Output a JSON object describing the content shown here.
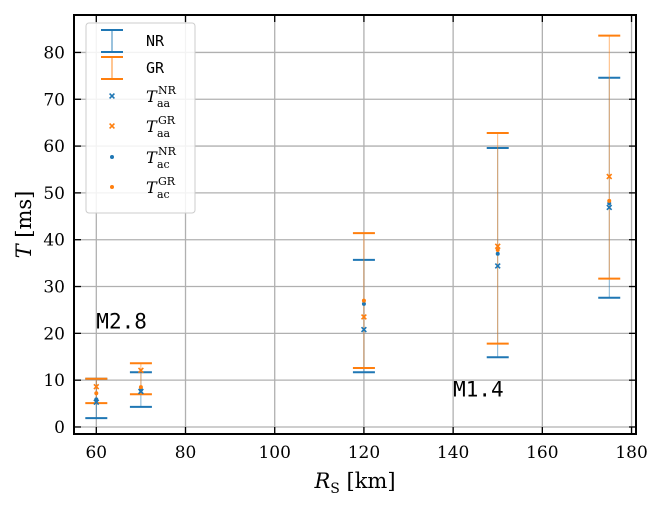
{
  "chart_data": {
    "type": "errorbar-scatter",
    "xlabel": "R",
    "xlabel_sub": "S",
    "xlabel_unit": "[km]",
    "ylabel": "T",
    "ylabel_unit": "[ms]",
    "xlim": [
      55,
      181
    ],
    "ylim": [
      -1.5,
      88
    ],
    "xticks": [
      60,
      80,
      100,
      120,
      140,
      160,
      180
    ],
    "yticks": [
      0,
      10,
      20,
      30,
      40,
      50,
      60,
      70,
      80
    ],
    "grid": true,
    "colors": {
      "NR": "#1f77b4",
      "GR": "#ff7f0e"
    },
    "ranges": [
      {
        "name": "NR",
        "x": [
          60,
          70,
          120,
          150,
          175
        ],
        "low": [
          1.9,
          4.3,
          11.7,
          14.9,
          27.6
        ],
        "high": [
          10.3,
          11.7,
          35.7,
          59.6,
          74.6
        ]
      },
      {
        "name": "GR",
        "x": [
          60,
          70,
          120,
          150,
          175
        ],
        "low": [
          5.1,
          7.0,
          12.6,
          17.8,
          31.7
        ],
        "high": [
          10.3,
          13.6,
          41.4,
          62.8,
          83.6
        ]
      }
    ],
    "points": [
      {
        "name": "T_aa^NR",
        "marker": "x",
        "color": "NR",
        "x": [
          60,
          70,
          120,
          150,
          175
        ],
        "y": [
          5.3,
          7.6,
          20.8,
          34.4,
          46.9
        ]
      },
      {
        "name": "T_aa^GR",
        "marker": "x",
        "color": "GR",
        "x": [
          60,
          70,
          120,
          150,
          175
        ],
        "y": [
          8.6,
          12.1,
          23.5,
          38.6,
          53.5
        ]
      },
      {
        "name": "T_ac^NR",
        "marker": "dot",
        "color": "NR",
        "x": [
          60,
          70,
          120,
          150,
          175
        ],
        "y": [
          5.9,
          7.9,
          26.3,
          37.0,
          47.8
        ]
      },
      {
        "name": "T_ac^GR",
        "marker": "dot",
        "color": "GR",
        "x": [
          60,
          70,
          120,
          150,
          175
        ],
        "y": [
          7.2,
          8.5,
          27.0,
          37.8,
          48.3
        ]
      }
    ],
    "legend": {
      "location": "upper-left",
      "entries": [
        {
          "label": "NR",
          "kind": "errorbar",
          "color": "NR"
        },
        {
          "label": "GR",
          "kind": "errorbar",
          "color": "GR"
        },
        {
          "label_base": "T",
          "label_sub": "aa",
          "label_sup": "NR",
          "kind": "x",
          "color": "NR"
        },
        {
          "label_base": "T",
          "label_sub": "aa",
          "label_sup": "GR",
          "kind": "x",
          "color": "GR"
        },
        {
          "label_base": "T",
          "label_sub": "ac",
          "label_sup": "NR",
          "kind": "dot",
          "color": "NR"
        },
        {
          "label_base": "T",
          "label_sub": "ac",
          "label_sup": "GR",
          "kind": "dot",
          "color": "GR"
        }
      ]
    },
    "annotations": [
      {
        "text": "M2.8",
        "x": 60,
        "y": 21
      },
      {
        "text": "M1.4",
        "x": 140,
        "y": 6.5
      }
    ]
  }
}
